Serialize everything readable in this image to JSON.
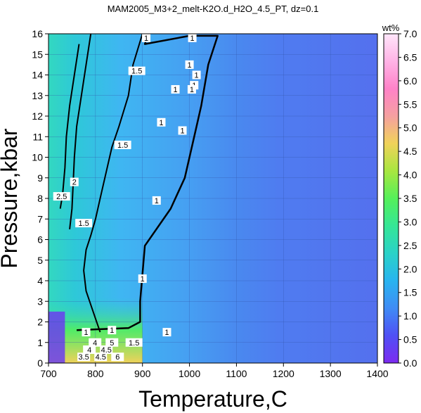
{
  "chart_data": {
    "type": "heatmap",
    "title": "MAM2005_M3+2_melt-K2O.d_H2O_4.5_PT, dz=0.1",
    "xlabel": "Temperature,C",
    "ylabel": "Pressure,kbar",
    "xlim": [
      700,
      1400
    ],
    "ylim": [
      0,
      16
    ],
    "xticks": [
      "700",
      "800",
      "900",
      "1000",
      "1100",
      "1200",
      "1300",
      "1400"
    ],
    "yticks": [
      "0",
      "1",
      "2",
      "3",
      "4",
      "5",
      "6",
      "7",
      "8",
      "9",
      "10",
      "11",
      "12",
      "13",
      "14",
      "15",
      "16"
    ],
    "grid": true,
    "colorbar": {
      "label": "wt%",
      "range": [
        0,
        7
      ],
      "ticks": [
        "0.0",
        "0.5",
        "1.0",
        "1.5",
        "2.0",
        "2.5",
        "3.0",
        "3.5",
        "4.0",
        "4.5",
        "5.0",
        "5.5",
        "6.0",
        "6.5",
        "7.0"
      ],
      "colors": [
        "#7d2bf0",
        "#5050f5",
        "#3f8cf5",
        "#28b4f0",
        "#2ad2c8",
        "#35e696",
        "#55f05a",
        "#a8e640",
        "#f0d25a",
        "#f5a0a0",
        "#ff82c8",
        "#ffb4e6",
        "#ffe6fa"
      ]
    },
    "contours": [
      {
        "level": 1.0,
        "label": "1",
        "points": [
          [
            905,
            16
          ],
          [
            908,
            15.7
          ],
          [
            905,
            15.5
          ],
          [
            1000,
            15.9
          ],
          [
            1060,
            15.9
          ],
          [
            1040,
            14.5
          ],
          [
            1025,
            12.5
          ],
          [
            1010,
            11
          ],
          [
            990,
            9
          ],
          [
            960,
            7.5
          ],
          [
            905,
            5.7
          ],
          [
            895,
            3.0
          ],
          [
            895,
            2.0
          ],
          [
            870,
            1.7
          ],
          [
            760,
            1.6
          ]
        ],
        "labels_at": [
          [
            908,
            15.8
          ],
          [
            1006,
            15.8
          ],
          [
            1000,
            14.5
          ],
          [
            1015,
            14.0
          ],
          [
            1010,
            13.5
          ],
          [
            1005,
            13.3
          ],
          [
            970,
            13.3
          ],
          [
            940,
            11.7
          ],
          [
            985,
            11.3
          ],
          [
            930,
            7.9
          ],
          [
            900,
            4.1
          ],
          [
            780,
            1.5
          ],
          [
            835,
            1.6
          ],
          [
            952,
            1.5
          ]
        ]
      },
      {
        "level": 1.5,
        "label": "1.5",
        "points": [
          [
            900,
            16
          ],
          [
            880,
            14.5
          ],
          [
            870,
            13.0
          ],
          [
            850,
            11.5
          ],
          [
            835,
            10.5
          ],
          [
            820,
            9.0
          ],
          [
            810,
            8.0
          ],
          [
            800,
            7.0
          ],
          [
            790,
            6.2
          ],
          [
            780,
            5.5
          ],
          [
            775,
            4.5
          ],
          [
            780,
            3.5
          ],
          [
            795,
            2.5
          ],
          [
            810,
            1.5
          ]
        ],
        "labels_at": [
          [
            888,
            14.2
          ],
          [
            858,
            10.6
          ],
          [
            775,
            6.8
          ],
          [
            882,
            1.0
          ]
        ]
      },
      {
        "level": 2.0,
        "label": "2",
        "points": [
          [
            790,
            16
          ],
          [
            780,
            14.5
          ],
          [
            770,
            13.0
          ],
          [
            760,
            11.5
          ],
          [
            755,
            10.0
          ],
          [
            752,
            8.5
          ],
          [
            750,
            7.5
          ],
          [
            745,
            6.5
          ]
        ],
        "labels_at": [
          [
            755,
            8.8
          ]
        ]
      },
      {
        "level": 2.5,
        "label": "2.5",
        "points": [
          [
            765,
            15.5
          ],
          [
            755,
            14.0
          ],
          [
            745,
            12.5
          ],
          [
            738,
            11.0
          ],
          [
            735,
            9.5
          ],
          [
            730,
            8.2
          ],
          [
            725,
            7.5
          ]
        ],
        "labels_at": [
          [
            728,
            8.1
          ]
        ]
      }
    ],
    "low_p_labels": [
      "3.5",
      "4",
      "4",
      "4.5",
      "4.5",
      "5",
      "6"
    ]
  }
}
